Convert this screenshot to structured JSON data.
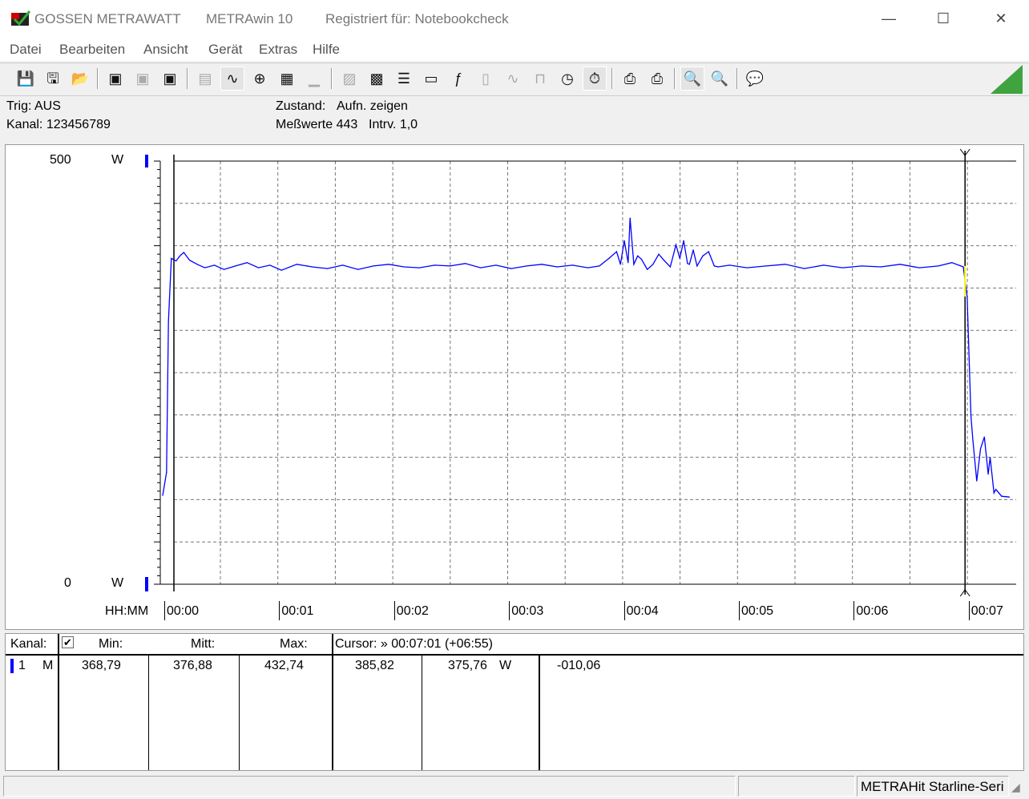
{
  "titlebar": {
    "brand": "GOSSEN METRAWATT",
    "app": "METRAwin 10",
    "registered": "Registriert für: Notebookcheck",
    "minimize": "—",
    "maximize": "☐",
    "close": "✕"
  },
  "menu": [
    "Datei",
    "Bearbeiten",
    "Ansicht",
    "Gerät",
    "Extras",
    "Hilfe"
  ],
  "toolbar": [
    {
      "icon": "save-icon",
      "glyph": "💾"
    },
    {
      "icon": "load-icon",
      "glyph": "🖫"
    },
    {
      "icon": "open-folder-icon",
      "glyph": "📂"
    },
    "|",
    {
      "icon": "device-read-icon",
      "glyph": "▣"
    },
    {
      "icon": "device-transfer-icon",
      "glyph": "▣",
      "disabled": true
    },
    {
      "icon": "device-memory-icon",
      "glyph": "▣"
    },
    "|",
    {
      "icon": "display-icon",
      "glyph": "▤",
      "disabled": true
    },
    {
      "icon": "yt-chart-icon",
      "glyph": "∿",
      "active": true
    },
    {
      "icon": "xy-chart-icon",
      "glyph": "⊕"
    },
    {
      "icon": "table-icon",
      "glyph": "▦"
    },
    {
      "icon": "histogram-icon",
      "glyph": "▁",
      "disabled": true
    },
    "|",
    {
      "icon": "export-icon",
      "glyph": "▨",
      "disabled": true
    },
    {
      "icon": "import-icon",
      "glyph": "▩"
    },
    {
      "icon": "settings-list-icon",
      "glyph": "☰"
    },
    {
      "icon": "monitor-icon",
      "glyph": "▭"
    },
    {
      "icon": "function-icon",
      "glyph": "ƒ"
    },
    {
      "icon": "meter-icon",
      "glyph": "▯",
      "disabled": true
    },
    {
      "icon": "signal-icon",
      "glyph": "∿",
      "disabled": true
    },
    {
      "icon": "waveform-icon",
      "glyph": "⊓",
      "disabled": true
    },
    {
      "icon": "timer-icon",
      "glyph": "◷"
    },
    {
      "icon": "start-recording-icon",
      "glyph": "⏱",
      "active": true
    },
    "|",
    {
      "icon": "print-preview-icon",
      "glyph": "⎙"
    },
    {
      "icon": "print-icon",
      "glyph": "⎙"
    },
    "|",
    {
      "icon": "zoom-auto-icon",
      "glyph": "🔍",
      "active": true
    },
    {
      "icon": "zoom-icon",
      "glyph": "🔍"
    },
    "|",
    {
      "icon": "help-icon",
      "glyph": "💬"
    }
  ],
  "info": {
    "trig": "Trig: AUS",
    "kanal": "Kanal: 123456789",
    "zustand_label": "Zustand:",
    "zustand_value": "Aufn. zeigen",
    "messwerte": "Meßwerte 443",
    "intervall": "Intrv. 1,0"
  },
  "chart_data": {
    "type": "line",
    "y_top_label": "500",
    "y_bottom_label": "0",
    "y_unit": "W",
    "xlabel": "HH:MM",
    "ylim": [
      0,
      500
    ],
    "xlim_seconds": [
      0,
      443
    ],
    "x_ticks": [
      "00:00",
      "00:01",
      "00:02",
      "00:03",
      "00:04",
      "00:05",
      "00:06",
      "00:07"
    ],
    "grid": true,
    "series_color": "#0000ff",
    "cursor_segment_color": "#ffff00",
    "cursor_seconds": 421,
    "series": [
      {
        "x": [
          0,
          2,
          3,
          4.5,
          7,
          9,
          11,
          14,
          18,
          22,
          27,
          32,
          38,
          44,
          50,
          56,
          62,
          70,
          78,
          86,
          94,
          102,
          110,
          118,
          126,
          134,
          142,
          150,
          158,
          166,
          174,
          182,
          190,
          198,
          206,
          214,
          222,
          228,
          233,
          237,
          239,
          241,
          243,
          244,
          246,
          248,
          250,
          253,
          256,
          259,
          262,
          265,
          268,
          270,
          272,
          274,
          275,
          277,
          279,
          282,
          285,
          288,
          290,
          296,
          305,
          315,
          325,
          335,
          345,
          355,
          365,
          375,
          385,
          395,
          405,
          412,
          418,
          420,
          422,
          423,
          425,
          427,
          429,
          431,
          432,
          434,
          435,
          438,
          442
        ],
        "y": [
          105,
          132,
          311,
          385,
          382,
          388,
          392,
          383,
          378,
          374,
          377,
          372,
          376,
          380,
          374,
          377,
          371,
          378,
          375,
          373,
          377,
          372,
          376,
          378,
          375,
          374,
          377,
          376,
          379,
          374,
          377,
          373,
          376,
          378,
          375,
          377,
          374,
          376,
          385,
          393,
          378,
          406,
          380,
          432.7,
          378,
          388,
          384,
          372,
          378,
          390,
          382,
          375,
          401,
          385,
          406,
          379,
          378,
          395,
          376,
          388,
          393,
          376,
          375,
          377,
          374,
          376,
          378,
          373,
          377,
          374,
          376,
          375,
          378,
          374,
          376,
          380,
          375,
          340,
          198,
          170,
          122,
          160,
          174,
          130,
          150,
          108,
          112,
          104,
          103
        ]
      }
    ]
  },
  "table": {
    "headers": {
      "kanal": "Kanal:",
      "min": "Min:",
      "mitt": "Mitt:",
      "max": "Max:",
      "cursor": "Cursor: » 00:07:01 (+06:55)"
    },
    "rows": [
      {
        "channel": "1",
        "mode": "M",
        "min": "368,79",
        "mitt": "376,88",
        "max": "432,74",
        "cursor1": "385,82",
        "cursor2": "375,76",
        "unit": "W",
        "diff": "-010,06"
      }
    ],
    "checkbox_checked": true
  },
  "status": {
    "device": "METRAHit Starline-Seri"
  }
}
